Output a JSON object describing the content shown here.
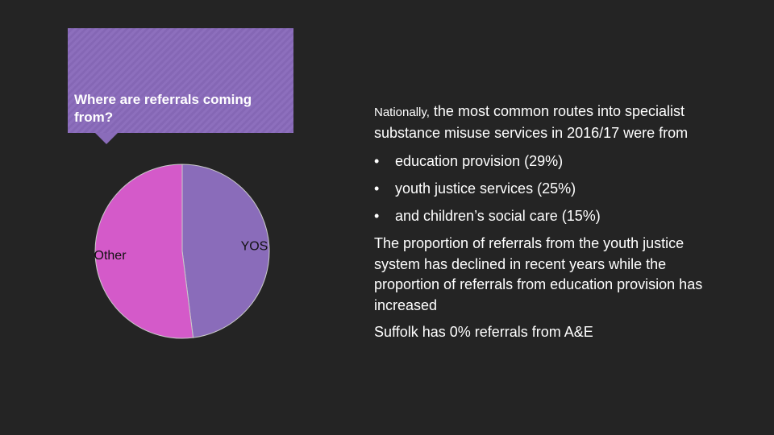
{
  "callout": {
    "title": "Where are referrals coming from?"
  },
  "chart_data": {
    "type": "pie",
    "categories": [
      "YOS",
      "Other"
    ],
    "values": [
      48,
      52
    ],
    "colors": [
      "#8a6cba",
      "#d45ac9"
    ],
    "start_angle_deg": 0,
    "direction": "clockwise",
    "title": ""
  },
  "text": {
    "lead_small": "Nationally,",
    "lead_rest": " the most common routes into specialist substance misuse services in 2016/17 were from",
    "bullet_char": "•",
    "bullets": [
      "education provision (29%)",
      "youth justice services (25%)",
      "and children’s social care (15%)"
    ],
    "para2": "The proportion of referrals from the youth justice system has declined in recent years while the proportion of referrals from education provision has increased",
    "para3": "Suffolk has 0% referrals from A&E"
  }
}
